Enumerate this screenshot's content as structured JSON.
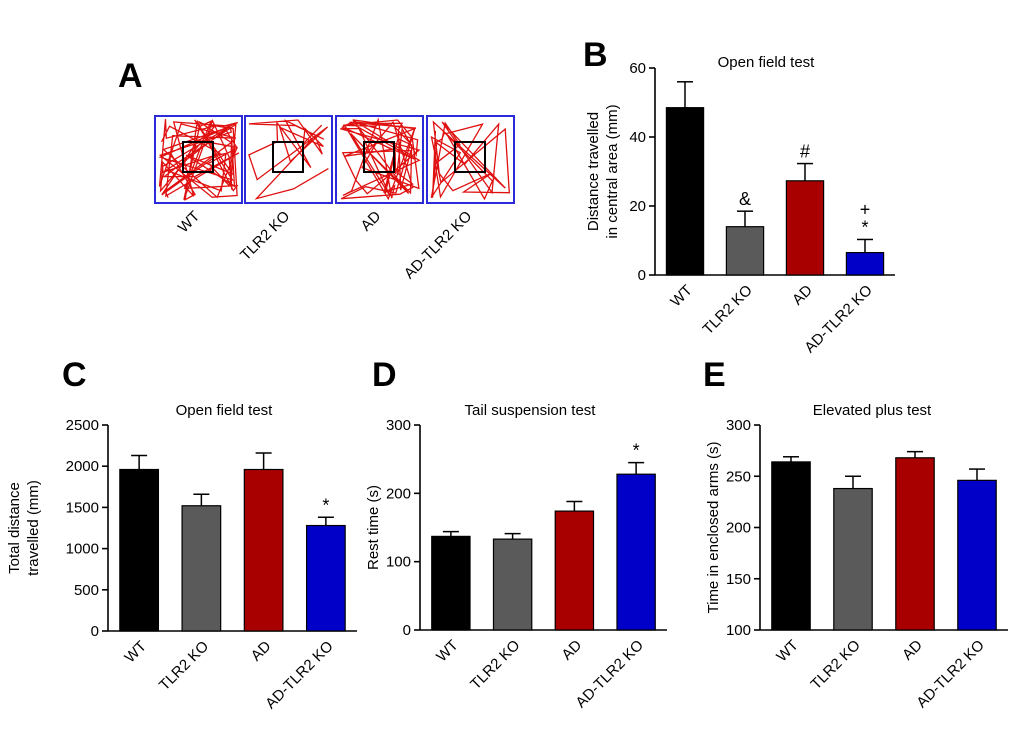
{
  "colors": {
    "WT": "#000000",
    "TLR2 KO": "#5a5a5a",
    "AD": "#a80000",
    "AD-TLR2 KO": "#0000c8"
  },
  "panel_a": {
    "label": "A",
    "groups": [
      "WT",
      "TLR2 KO",
      "AD",
      "AD-TLR2 KO"
    ]
  },
  "chart_data": [
    {
      "id": "B",
      "type": "bar",
      "title": "Open field test",
      "ylabel_lines": [
        "Distance travelled",
        "in central area (mm)"
      ],
      "categories": [
        "WT",
        "TLR2 KO",
        "AD",
        "AD-TLR2 KO"
      ],
      "values": [
        48.5,
        14,
        27.3,
        6.5
      ],
      "errors": [
        7.5,
        4.5,
        5,
        3.8
      ],
      "ylim": [
        0,
        60
      ],
      "yticks": [
        0,
        20,
        40,
        60
      ],
      "ytick_labels": [
        "0",
        "20",
        "40",
        "60"
      ],
      "annotations": [
        "",
        "&",
        "#",
        "+\n*"
      ]
    },
    {
      "id": "C",
      "type": "bar",
      "title": "Open field test",
      "ylabel_lines": [
        "Total distance",
        "travelled (mm)"
      ],
      "categories": [
        "WT",
        "TLR2 KO",
        "AD",
        "AD-TLR2 KO"
      ],
      "values": [
        1960,
        1520,
        1960,
        1280
      ],
      "errors": [
        170,
        140,
        200,
        100
      ],
      "ylim": [
        0,
        2500
      ],
      "yticks": [
        0,
        500,
        1000,
        1500,
        2000,
        2500
      ],
      "ytick_labels": [
        "0",
        "500",
        "1000",
        "1500",
        "2000",
        "2500"
      ],
      "annotations": [
        "",
        "",
        "",
        "*"
      ]
    },
    {
      "id": "D",
      "type": "bar",
      "title": "Tail suspension test",
      "ylabel_lines": [
        "Rest time (s)"
      ],
      "categories": [
        "WT",
        "TLR2 KO",
        "AD",
        "AD-TLR2 KO"
      ],
      "values": [
        137,
        133,
        174,
        228
      ],
      "errors": [
        7,
        8,
        14,
        17
      ],
      "ylim": [
        0,
        300
      ],
      "yticks": [
        0,
        100,
        200,
        300
      ],
      "ytick_labels": [
        "0",
        "100",
        "200",
        "300"
      ],
      "annotations": [
        "",
        "",
        "",
        "*"
      ]
    },
    {
      "id": "E",
      "type": "bar",
      "title": "Elevated plus test",
      "ylabel_lines": [
        "Time in enclosed arms (s)"
      ],
      "categories": [
        "WT",
        "TLR2 KO",
        "AD",
        "AD-TLR2 KO"
      ],
      "values": [
        264,
        238,
        268,
        246
      ],
      "errors": [
        5,
        12,
        6,
        11
      ],
      "ylim": [
        100,
        300
      ],
      "yticks": [
        100,
        150,
        200,
        250,
        300
      ],
      "ytick_labels": [
        "100",
        "150",
        "200",
        "250",
        "300"
      ],
      "annotations": [
        "",
        "",
        "",
        ""
      ]
    }
  ]
}
